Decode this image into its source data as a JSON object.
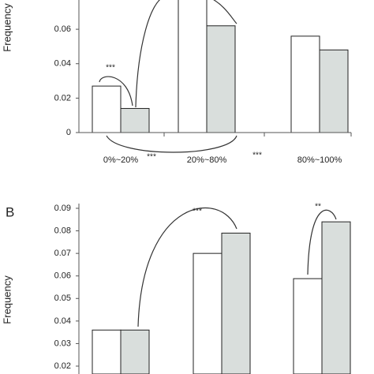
{
  "chart_data": [
    {
      "type": "bar",
      "y_label": "Frequency",
      "categories": [
        "0%~20%",
        "20%~80%",
        "80%~100%"
      ],
      "series": [
        {
          "color": "#ffffff",
          "values": [
            0.027,
            0.08,
            0.056
          ]
        },
        {
          "color": "#d9dedc",
          "values": [
            0.014,
            0.062,
            0.048
          ]
        }
      ],
      "ylim": [
        0,
        0.077
      ],
      "yticks": [
        0,
        0.02,
        0.04,
        0.06
      ],
      "annotations": [
        "***",
        "***",
        "***"
      ]
    },
    {
      "type": "bar",
      "panel_label": "B",
      "y_label": "Frequency",
      "categories": [
        null,
        null,
        null
      ],
      "series": [
        {
          "color": "#ffffff",
          "values": [
            0.036,
            0.07,
            0.0588
          ]
        },
        {
          "color": "#d9dedc",
          "values": [
            0.036,
            0.079,
            0.084
          ]
        }
      ],
      "ylim": [
        0.0165,
        0.09
      ],
      "yticks": [
        0.02,
        0.03,
        0.04,
        0.05,
        0.06,
        0.07,
        0.08,
        0.09
      ],
      "annotations": [
        "***",
        "**"
      ]
    }
  ]
}
